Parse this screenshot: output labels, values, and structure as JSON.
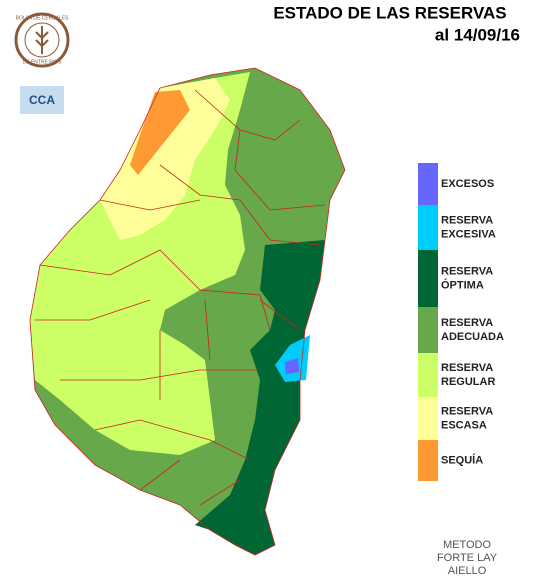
{
  "header": {
    "title": "ESTADO DE LAS RESERVAS",
    "date": "al 14/09/16"
  },
  "logos": {
    "bolsa": [
      "BOLSA DE CEREALES",
      "DE ENTRE RIOS"
    ],
    "cca": "CCA"
  },
  "legend": [
    {
      "lines": [
        "EXCESOS"
      ],
      "color": "#6666ff"
    },
    {
      "lines": [
        "RESERVA",
        "EXCESIVA"
      ],
      "color": "#00ccff"
    },
    {
      "lines": [
        "RESERVA",
        "ÓPTIMA"
      ],
      "color": "#006633"
    },
    {
      "lines": [
        "RESERVA",
        "ADECUADA"
      ],
      "color": "#66a84a"
    },
    {
      "lines": [
        "RESERVA",
        "REGULAR"
      ],
      "color": "#ccff66"
    },
    {
      "lines": [
        "RESERVA",
        "ESCASA"
      ],
      "color": "#ffff99"
    },
    {
      "lines": [
        "SEQUÍA"
      ],
      "color": "#ff9933"
    }
  ],
  "method": [
    "METODO",
    "FORTE LAY",
    "AIELLO"
  ]
}
